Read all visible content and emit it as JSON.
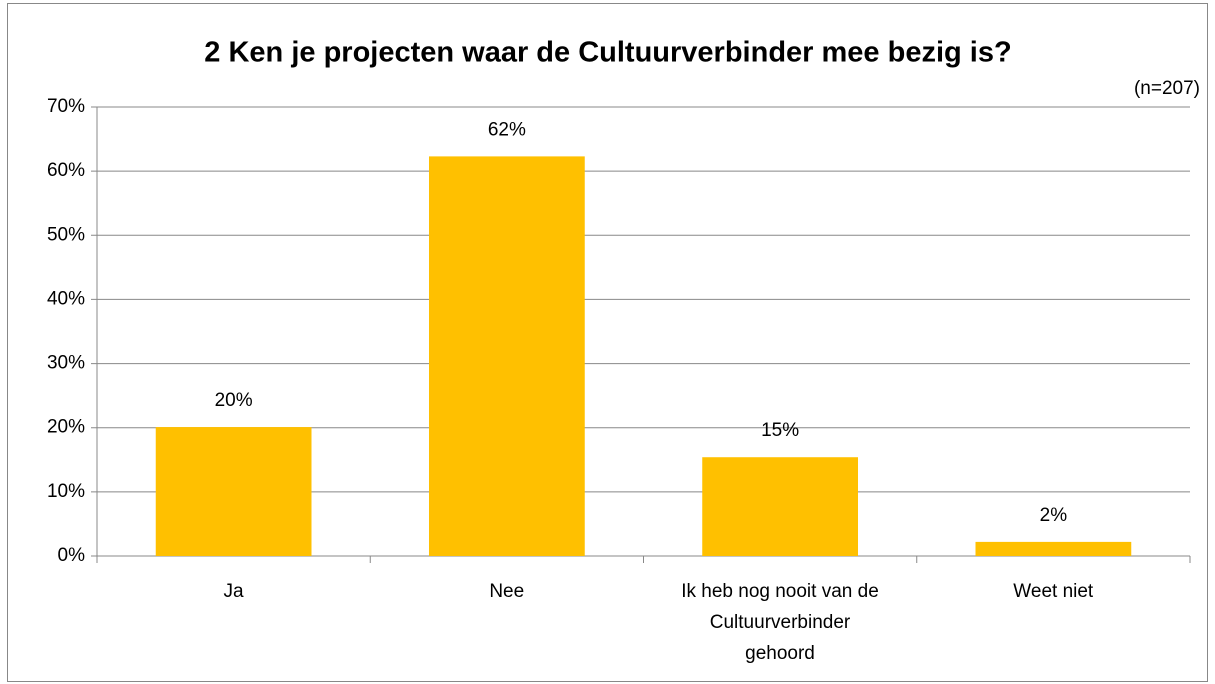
{
  "chart_data": {
    "type": "bar",
    "title": "2 Ken je projecten waar de Cultuurverbinder mee bezig is?",
    "subtitle": "(n=207)",
    "categories": [
      "Ja",
      "Nee",
      "Ik heb nog nooit van de\nCultuurverbinder\ngehoord",
      "Weet niet"
    ],
    "values": [
      20.1,
      62.3,
      15.4,
      2.2
    ],
    "value_labels": [
      "20%",
      "62%",
      "15%",
      "2%"
    ],
    "color": "#ffc000",
    "ylim": [
      0,
      70
    ],
    "yticks": [
      {
        "value": 0,
        "label": "0%"
      },
      {
        "value": 10,
        "label": "10%"
      },
      {
        "value": 20,
        "label": "20%"
      },
      {
        "value": 30,
        "label": "30%"
      },
      {
        "value": 40,
        "label": "40%"
      },
      {
        "value": 50,
        "label": "50%"
      },
      {
        "value": 60,
        "label": "60%"
      },
      {
        "value": 70,
        "label": "70%"
      }
    ],
    "grid": true
  }
}
